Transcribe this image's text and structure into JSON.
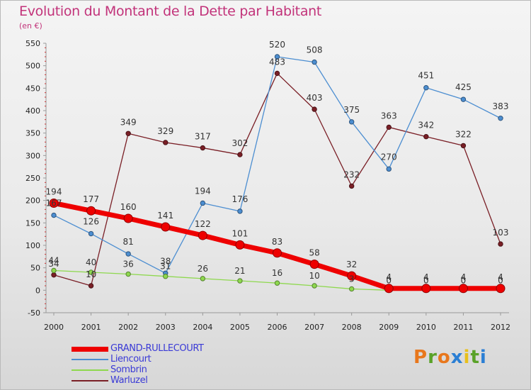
{
  "title": "Evolution du Montant de la Dette par Habitant",
  "subtitle": "(en €)",
  "brand": {
    "letters": [
      "P",
      "r",
      "o",
      "x",
      "i",
      "t",
      "i"
    ],
    "colors": [
      "#e8771c",
      "#5aa228",
      "#e8771c",
      "#2b7fd4",
      "#e8c01c",
      "#5aa228",
      "#2b7fd4"
    ]
  },
  "chart_data": {
    "type": "line",
    "title": "Evolution du Montant de la Dette par Habitant",
    "subtitle": "(en €)",
    "xlabel": "",
    "ylabel": "",
    "x": [
      "2000",
      "2001",
      "2002",
      "2003",
      "2004",
      "2005",
      "2006",
      "2007",
      "2008",
      "2009",
      "2010",
      "2011",
      "2012"
    ],
    "ylim": [
      -50,
      550
    ],
    "yticks": [
      -50,
      0,
      50,
      100,
      150,
      200,
      250,
      300,
      350,
      400,
      450,
      500,
      550
    ],
    "grid": false,
    "legend_position": "bottom-left",
    "series": [
      {
        "name": "GRAND-RULLECOURT",
        "color": "#ee0000",
        "values": [
          194,
          177,
          160,
          141,
          122,
          101,
          83,
          58,
          32,
          4,
          4,
          4,
          4
        ]
      },
      {
        "name": "Liencourt",
        "color": "#4c8ed1",
        "values": [
          167,
          126,
          81,
          38,
          194,
          176,
          520,
          508,
          375,
          270,
          451,
          425,
          383
        ]
      },
      {
        "name": "Sombrin",
        "color": "#8ed84e",
        "values": [
          44,
          40,
          36,
          31,
          26,
          21,
          16,
          10,
          3,
          0,
          0,
          0,
          0
        ]
      },
      {
        "name": "Warluzel",
        "color": "#7a1f26",
        "values": [
          34,
          10,
          349,
          329,
          317,
          302,
          483,
          403,
          232,
          363,
          342,
          322,
          103
        ]
      }
    ]
  }
}
